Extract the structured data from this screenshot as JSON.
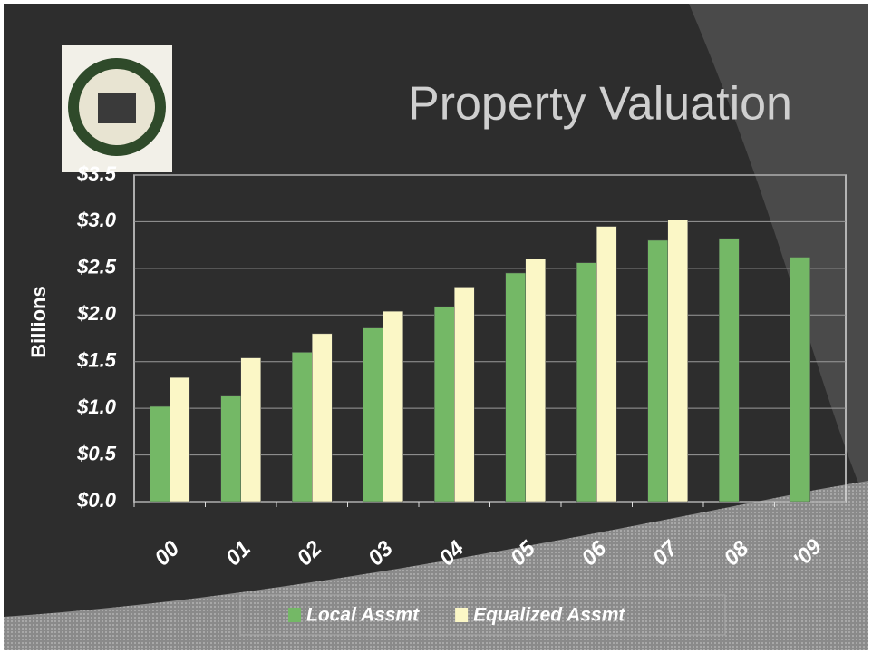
{
  "chart_data": {
    "type": "bar",
    "title": "Property Valuation",
    "y_label": "Billions",
    "categories": [
      "00",
      "01",
      "02",
      "03",
      "04",
      "05",
      "06",
      "07",
      "08",
      "'09"
    ],
    "series": [
      {
        "name": "Local Assmt",
        "color": "#74b866",
        "values": [
          1.02,
          1.13,
          1.6,
          1.86,
          2.09,
          2.45,
          2.56,
          2.8,
          2.82,
          2.62
        ]
      },
      {
        "name": "Equalized Assmt",
        "color": "#fbf7c6",
        "values": [
          1.33,
          1.54,
          1.8,
          2.04,
          2.3,
          2.6,
          2.95,
          3.02,
          null,
          null
        ]
      }
    ],
    "ylim": [
      0,
      3.5
    ],
    "yticks": [
      {
        "value": 0,
        "label": "$0.0"
      },
      {
        "value": 0.5,
        "label": "$0.5"
      },
      {
        "value": 1,
        "label": "$1.0"
      },
      {
        "value": 1.5,
        "label": "$1.5"
      },
      {
        "value": 2,
        "label": "$2.0"
      },
      {
        "value": 2.5,
        "label": "$2.5"
      },
      {
        "value": 3,
        "label": "$3.0"
      },
      {
        "value": 3.5,
        "label": "$3.5"
      }
    ],
    "grid": true,
    "legend": "bottom"
  }
}
